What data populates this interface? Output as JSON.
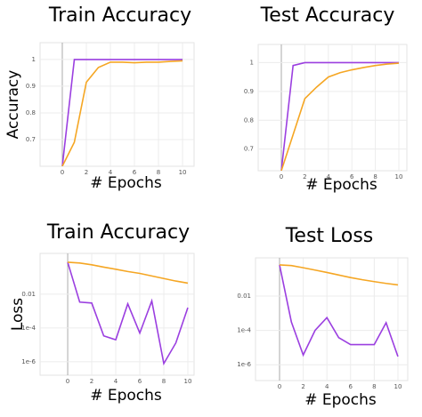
{
  "chart_data": [
    {
      "type": "line",
      "title": "Train Accuracy",
      "ylabel": "Accuracy",
      "xlabel": "# Epochs",
      "x": [
        0,
        1,
        2,
        3,
        4,
        5,
        6,
        7,
        8,
        9,
        10
      ],
      "series": [
        {
          "color": "#9b3fe0",
          "values": [
            0.6,
            1.0,
            1.0,
            1.0,
            1.0,
            1.0,
            1.0,
            1.0,
            1.0,
            1.0,
            1.0
          ]
        },
        {
          "color": "#f5a623",
          "values": [
            0.6,
            0.69,
            0.915,
            0.97,
            0.99,
            0.99,
            0.988,
            0.99,
            0.99,
            0.993,
            0.995
          ]
        }
      ],
      "xlim": [
        -1.85,
        10.96
      ],
      "ylim": [
        0.6,
        1.063
      ],
      "xticks": [
        0,
        2,
        4,
        6,
        8,
        10
      ],
      "yticks": [
        0.7,
        0.8,
        0.9,
        1
      ],
      "grid": true
    },
    {
      "type": "line",
      "title": "Test Accuracy",
      "xlabel": "# Epochs",
      "x": [
        0,
        1,
        2,
        3,
        4,
        5,
        6,
        7,
        8,
        9,
        10
      ],
      "series": [
        {
          "color": "#9b3fe0",
          "values": [
            0.625,
            0.99,
            1.0,
            1.0,
            1.0,
            1.0,
            1.0,
            1.0,
            1.0,
            1.0,
            1.0
          ]
        },
        {
          "color": "#f5a623",
          "values": [
            0.625,
            0.75,
            0.875,
            0.915,
            0.95,
            0.965,
            0.975,
            0.983,
            0.99,
            0.995,
            0.998
          ]
        }
      ],
      "xlim": [
        -1.97,
        10.68
      ],
      "ylim": [
        0.625,
        1.063
      ],
      "xticks": [
        0,
        2,
        4,
        6,
        8,
        10
      ],
      "yticks": [
        0.7,
        0.8,
        0.9,
        1
      ],
      "grid": true
    },
    {
      "type": "line",
      "title": "Train Accuracy",
      "ylabel": "Loss",
      "xlabel": "# Epochs",
      "yscale": "log",
      "x": [
        0,
        1,
        2,
        3,
        4,
        5,
        6,
        7,
        8,
        9,
        10
      ],
      "series": [
        {
          "color": "#9b3fe0",
          "values": [
            0.78,
            0.0034,
            0.003,
            3.4e-05,
            2e-05,
            0.0027,
            5e-05,
            0.004,
            7.8e-07,
            1.3e-05,
            0.0016
          ]
        },
        {
          "color": "#f5a623",
          "values": [
            0.78,
            0.7,
            0.55,
            0.4,
            0.3,
            0.22,
            0.17,
            0.12,
            0.085,
            0.06,
            0.045
          ]
        }
      ],
      "xlim": [
        -2.3,
        10.52
      ],
      "ylim": [
        1.6e-07,
        2.6
      ],
      "xticks": [
        0,
        2,
        4,
        6,
        8,
        10
      ],
      "yticks": [
        {
          "value": 1e-06,
          "label": "1e-6"
        },
        {
          "value": 0.0001,
          "label": "1e-4"
        },
        0.01
      ],
      "grid": true
    },
    {
      "type": "line",
      "title": "Test Loss",
      "xlabel": "# Epochs",
      "yscale": "log",
      "x": [
        0,
        1,
        2,
        3,
        4,
        5,
        6,
        7,
        8,
        9,
        10
      ],
      "series": [
        {
          "color": "#9b3fe0",
          "values": [
            0.66,
            0.00031,
            3.7e-06,
            0.0001,
            0.00056,
            3.8e-05,
            1.5e-05,
            1.5e-05,
            1.5e-05,
            0.00028,
            3e-06
          ]
        },
        {
          "color": "#f5a623",
          "values": [
            0.66,
            0.6,
            0.45,
            0.33,
            0.24,
            0.17,
            0.12,
            0.09,
            0.07,
            0.055,
            0.045
          ]
        }
      ],
      "xlim": [
        -2.03,
        10.83
      ],
      "ylim": [
        1.2e-07,
        1.7
      ],
      "xticks": [
        0,
        2,
        4,
        6,
        8,
        10
      ],
      "yticks": [
        {
          "value": 1e-06,
          "label": "1e-6"
        },
        {
          "value": 0.0001,
          "label": "1e-4"
        },
        0.01
      ],
      "grid": true
    }
  ]
}
